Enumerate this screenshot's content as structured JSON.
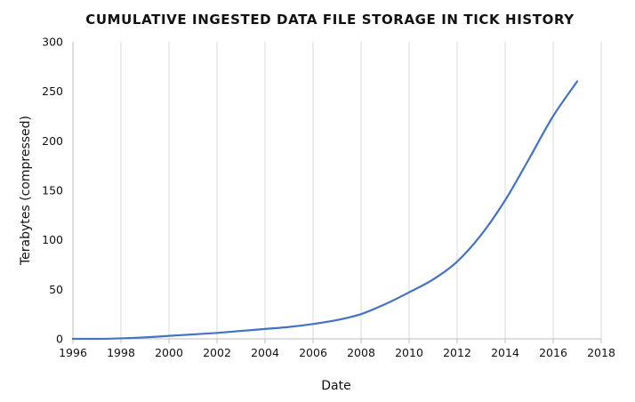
{
  "chart_data": {
    "type": "line",
    "title": "CUMULATIVE INGESTED DATA FILE STORAGE IN TICK HISTORY",
    "xlabel": "Date",
    "ylabel": "Terabytes (compressed)",
    "xlim": [
      1996,
      2018
    ],
    "ylim": [
      0,
      300
    ],
    "x_ticks": [
      "1996",
      "1998",
      "2000",
      "2002",
      "2004",
      "2006",
      "2008",
      "2010",
      "2012",
      "2014",
      "2016",
      "2018"
    ],
    "y_ticks": [
      "0",
      "50",
      "100",
      "150",
      "200",
      "250",
      "300"
    ],
    "grid": "vertical",
    "legend": "none",
    "series": [
      {
        "color": "#4472c4",
        "x": [
          1996,
          1997,
          1998,
          1999,
          2000,
          2001,
          2002,
          2003,
          2004,
          2005,
          2006,
          2007,
          2008,
          2009,
          2010,
          2011,
          2012,
          2013,
          2014,
          2015,
          2016,
          2017
        ],
        "y": [
          0,
          0,
          0.5,
          1.5,
          3,
          4.5,
          6,
          8,
          10,
          12,
          15,
          19,
          25,
          35,
          47,
          60,
          78,
          105,
          140,
          182,
          225,
          260
        ]
      }
    ]
  }
}
